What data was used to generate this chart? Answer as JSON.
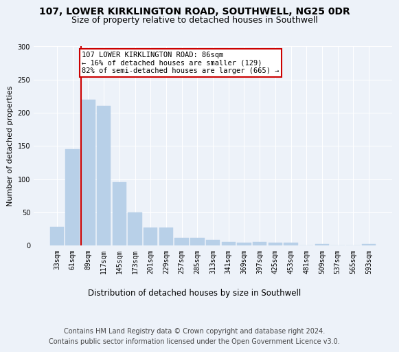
{
  "title1": "107, LOWER KIRKLINGTON ROAD, SOUTHWELL, NG25 0DR",
  "title2": "Size of property relative to detached houses in Southwell",
  "xlabel": "Distribution of detached houses by size in Southwell",
  "ylabel": "Number of detached properties",
  "bar_labels": [
    "33sqm",
    "61sqm",
    "89sqm",
    "117sqm",
    "145sqm",
    "173sqm",
    "201sqm",
    "229sqm",
    "257sqm",
    "285sqm",
    "313sqm",
    "341sqm",
    "369sqm",
    "397sqm",
    "425sqm",
    "453sqm",
    "481sqm",
    "509sqm",
    "537sqm",
    "565sqm",
    "593sqm"
  ],
  "bar_heights": [
    28,
    145,
    220,
    210,
    95,
    50,
    27,
    27,
    12,
    12,
    8,
    5,
    4,
    5,
    4,
    4,
    0,
    2,
    0,
    0,
    2
  ],
  "bar_color": "#b8d0e8",
  "bar_edgecolor": "#b8d0e8",
  "vline_color": "#cc0000",
  "annotation_text": "107 LOWER KIRKLINGTON ROAD: 86sqm\n← 16% of detached houses are smaller (129)\n82% of semi-detached houses are larger (665) →",
  "annotation_box_edgecolor": "#cc0000",
  "annotation_fontsize": 7.5,
  "ylim": [
    0,
    300
  ],
  "yticks": [
    0,
    50,
    100,
    150,
    200,
    250,
    300
  ],
  "background_color": "#edf2f9",
  "footer": "Contains HM Land Registry data © Crown copyright and database right 2024.\nContains public sector information licensed under the Open Government Licence v3.0.",
  "title_fontsize": 10,
  "subtitle_fontsize": 9,
  "xlabel_fontsize": 8.5,
  "ylabel_fontsize": 8,
  "footer_fontsize": 7,
  "tick_fontsize": 7
}
